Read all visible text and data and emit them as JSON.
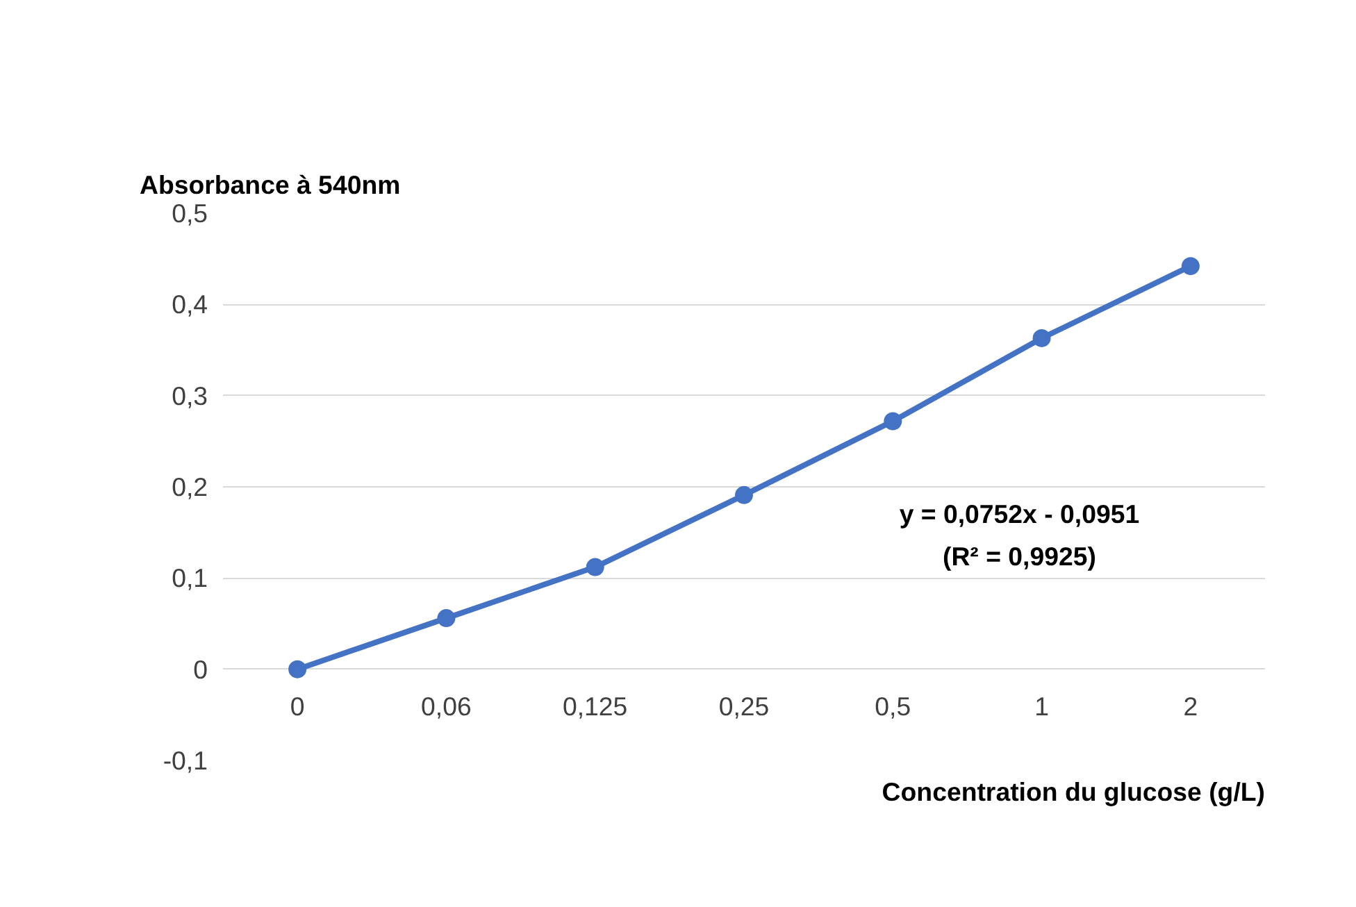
{
  "chart_data": {
    "type": "line",
    "xlabel": "Concentration du glucose (g/L)",
    "ylabel": "Absorbance à 540nm",
    "categories": [
      "0",
      "0,06",
      "0,125",
      "0,25",
      "0,5",
      "1",
      "2"
    ],
    "series": [
      {
        "color": "#4472c4",
        "values": [
          0,
          0.056,
          0.112,
          0.191,
          0.272,
          0.363,
          0.442
        ]
      }
    ],
    "ylim": [
      -0.1,
      0.5
    ],
    "yticks": [
      {
        "value": -0.1,
        "label": "-0,1"
      },
      {
        "value": 0,
        "label": "0"
      },
      {
        "value": 0.1,
        "label": "0,1"
      },
      {
        "value": 0.2,
        "label": "0,2"
      },
      {
        "value": 0.3,
        "label": "0,3"
      },
      {
        "value": 0.4,
        "label": "0,4"
      },
      {
        "value": 0.5,
        "label": "0,5"
      }
    ],
    "grid": "y",
    "marker": "circle",
    "line_style": "solid",
    "annotations": [
      "y = 0,0752x - 0,0951",
      "(R² = 0,9925)"
    ]
  }
}
